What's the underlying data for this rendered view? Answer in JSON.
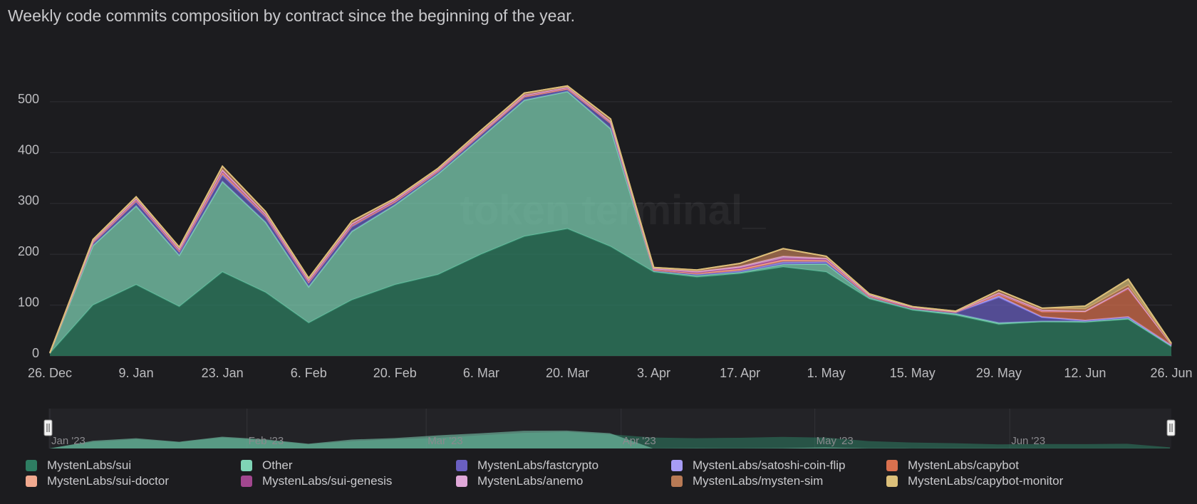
{
  "header": {
    "title": "Weekly code commits composition by contract since the beginning of the year."
  },
  "watermark": "token terminal_",
  "navigator": {
    "month_labels": [
      "Jan '23",
      "Feb '23",
      "Mar '23",
      "Apr '23",
      "May '23",
      "Jun '23"
    ]
  },
  "chart_data": {
    "type": "area",
    "stacked": true,
    "x": [
      "26. Dec",
      "2. Jan",
      "9. Jan",
      "16. Jan",
      "23. Jan",
      "30. Jan",
      "6. Feb",
      "13. Feb",
      "20. Feb",
      "27. Feb",
      "6. Mar",
      "13. Mar",
      "20. Mar",
      "27. Mar",
      "3. Apr",
      "10. Apr",
      "17. Apr",
      "24. Apr",
      "1. May",
      "8. May",
      "15. May",
      "22. May",
      "29. May",
      "5. Jun",
      "12. Jun",
      "19. Jun",
      "26. Jun"
    ],
    "x_tick_labels": [
      "26. Dec",
      "9. Jan",
      "23. Jan",
      "6. Feb",
      "20. Feb",
      "6. Mar",
      "20. Mar",
      "3. Apr",
      "17. Apr",
      "1. May",
      "15. May",
      "29. May",
      "12. Jun",
      "26. Jun"
    ],
    "y_ticks": [
      0,
      100,
      200,
      300,
      400,
      500
    ],
    "ylim": [
      0,
      560
    ],
    "grid": true,
    "legend_position": "bottom",
    "series": [
      {
        "name": "MystenLabs/sui",
        "color": "#2e7d62",
        "values": [
          5,
          100,
          140,
          97,
          165,
          125,
          65,
          110,
          140,
          160,
          200,
          235,
          250,
          215,
          165,
          155,
          162,
          175,
          165,
          112,
          90,
          80,
          62,
          67,
          66,
          72,
          18
        ]
      },
      {
        "name": "Other",
        "color": "#7fd4b6",
        "values": [
          0,
          117,
          155,
          101,
          178,
          138,
          71,
          135,
          157,
          198,
          230,
          268,
          270,
          232,
          2,
          4,
          3,
          5,
          16,
          3,
          2,
          3,
          3,
          1,
          2,
          2,
          2
        ]
      },
      {
        "name": "MystenLabs/fastcrypto",
        "color": "#6a5fc1",
        "values": [
          1,
          5,
          8,
          6,
          12,
          10,
          7,
          9,
          5,
          4,
          6,
          6,
          4,
          10,
          1,
          1,
          1,
          2,
          3,
          1,
          1,
          2,
          50,
          8,
          1,
          2,
          1
        ]
      },
      {
        "name": "MystenLabs/satoshi-coin-flip",
        "color": "#a79cf5",
        "values": [
          0,
          1,
          2,
          2,
          4,
          2,
          2,
          2,
          1,
          1,
          1,
          1,
          1,
          1,
          1,
          2,
          3,
          5,
          3,
          1,
          1,
          1,
          3,
          1,
          1,
          1,
          0
        ]
      },
      {
        "name": "MystenLabs/capybot",
        "color": "#d9704e",
        "values": [
          0,
          0,
          0,
          0,
          0,
          0,
          0,
          0,
          0,
          0,
          0,
          0,
          0,
          0,
          0,
          0,
          0,
          0,
          0,
          0,
          0,
          0,
          3,
          10,
          17,
          55,
          2
        ]
      },
      {
        "name": "MystenLabs/sui-doctor",
        "color": "#f1a98f",
        "values": [
          0,
          1,
          1,
          1,
          2,
          1,
          1,
          1,
          1,
          1,
          1,
          1,
          1,
          1,
          1,
          1,
          2,
          2,
          1,
          1,
          1,
          1,
          1,
          1,
          1,
          1,
          0
        ]
      },
      {
        "name": "MystenLabs/sui-genesis",
        "color": "#a2478f",
        "values": [
          0,
          1,
          1,
          1,
          2,
          1,
          1,
          1,
          1,
          1,
          1,
          1,
          1,
          1,
          1,
          1,
          2,
          3,
          2,
          1,
          0,
          0,
          1,
          1,
          0,
          0,
          0
        ]
      },
      {
        "name": "MystenLabs/anemo",
        "color": "#e0a8d8",
        "values": [
          0,
          1,
          2,
          2,
          3,
          2,
          2,
          2,
          2,
          1,
          1,
          1,
          1,
          1,
          1,
          2,
          3,
          4,
          2,
          1,
          1,
          0,
          1,
          1,
          0,
          1,
          0
        ]
      },
      {
        "name": "MystenLabs/mysten-sim",
        "color": "#b87a55",
        "values": [
          0,
          3,
          4,
          4,
          7,
          5,
          4,
          5,
          3,
          3,
          4,
          4,
          3,
          5,
          2,
          3,
          6,
          15,
          4,
          2,
          1,
          1,
          5,
          4,
          4,
          5,
          1
        ]
      },
      {
        "name": "MystenLabs/capybot-monitor",
        "color": "#dcc07a",
        "values": [
          0,
          0,
          0,
          0,
          0,
          0,
          0,
          0,
          0,
          0,
          0,
          0,
          0,
          0,
          0,
          0,
          0,
          0,
          0,
          0,
          0,
          0,
          0,
          0,
          6,
          12,
          1
        ]
      }
    ]
  }
}
